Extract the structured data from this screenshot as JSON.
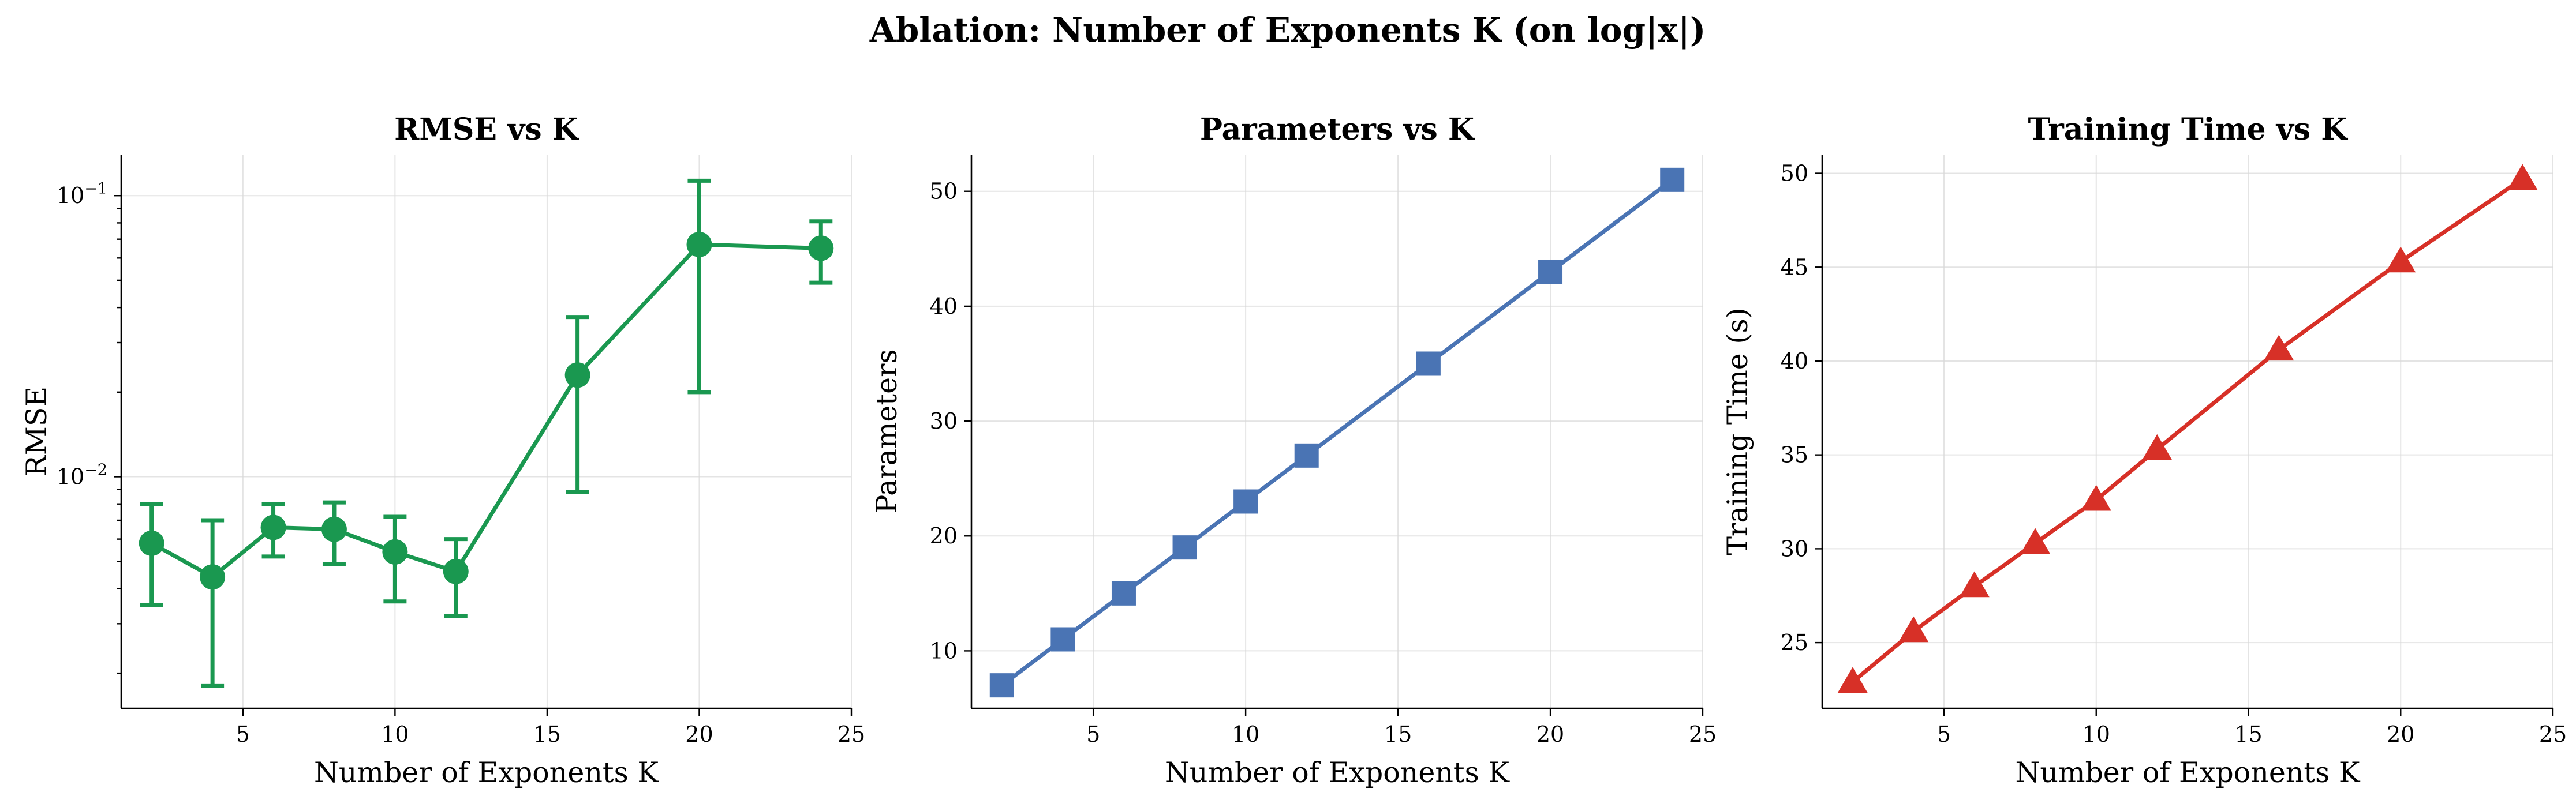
{
  "suptitle": "Ablation: Number of Exponents K (on log|x|)",
  "chart_data": [
    {
      "type": "line",
      "title": "RMSE vs K",
      "xlabel": "Number of Exponents K",
      "ylabel": "RMSE",
      "yscale": "log",
      "color": "#1a9850",
      "marker": "circle",
      "x": [
        2,
        4,
        6,
        8,
        10,
        12,
        16,
        20,
        24
      ],
      "values": [
        0.0058,
        0.0044,
        0.0066,
        0.0065,
        0.0054,
        0.0046,
        0.023,
        0.067,
        0.065
      ],
      "err_low": [
        0.0035,
        0.0018,
        0.0052,
        0.0049,
        0.0036,
        0.0032,
        0.0088,
        0.02,
        0.049
      ],
      "err_high": [
        0.008,
        0.007,
        0.008,
        0.0081,
        0.0072,
        0.006,
        0.037,
        0.113,
        0.081
      ],
      "xlim": [
        1,
        25
      ],
      "ylim": [
        0.0015,
        0.14
      ],
      "xticks": [
        5,
        10,
        15,
        20,
        25
      ],
      "yticks": [
        {
          "value": 0.1,
          "base": "10",
          "exp": "−1"
        },
        {
          "value": 0.01,
          "base": "10",
          "exp": "−2"
        }
      ],
      "grid": true
    },
    {
      "type": "line",
      "title": "Parameters vs K",
      "xlabel": "Number of Exponents K",
      "ylabel": "Parameters",
      "color": "#4a74b4",
      "marker": "square",
      "x": [
        2,
        4,
        6,
        8,
        10,
        12,
        16,
        20,
        24
      ],
      "values": [
        7,
        11,
        15,
        19,
        23,
        27,
        35,
        43,
        51
      ],
      "xlim": [
        1,
        25
      ],
      "ylim": [
        5,
        53.2
      ],
      "xticks": [
        5,
        10,
        15,
        20,
        25
      ],
      "yticks": [
        10,
        20,
        30,
        40,
        50
      ],
      "grid": true
    },
    {
      "type": "line",
      "title": "Training Time vs K",
      "xlabel": "Number of Exponents K",
      "ylabel": "Training Time (s)",
      "color": "#d73027",
      "marker": "triangle",
      "x": [
        2,
        4,
        6,
        8,
        10,
        12,
        16,
        20,
        24
      ],
      "values": [
        22.9,
        25.6,
        28.0,
        30.3,
        32.6,
        35.3,
        40.6,
        45.3,
        49.7
      ],
      "xlim": [
        1,
        25
      ],
      "ylim": [
        21.5,
        51.0
      ],
      "xticks": [
        5,
        10,
        15,
        20,
        25
      ],
      "yticks": [
        25,
        30,
        35,
        40,
        45,
        50
      ],
      "grid": true
    }
  ]
}
